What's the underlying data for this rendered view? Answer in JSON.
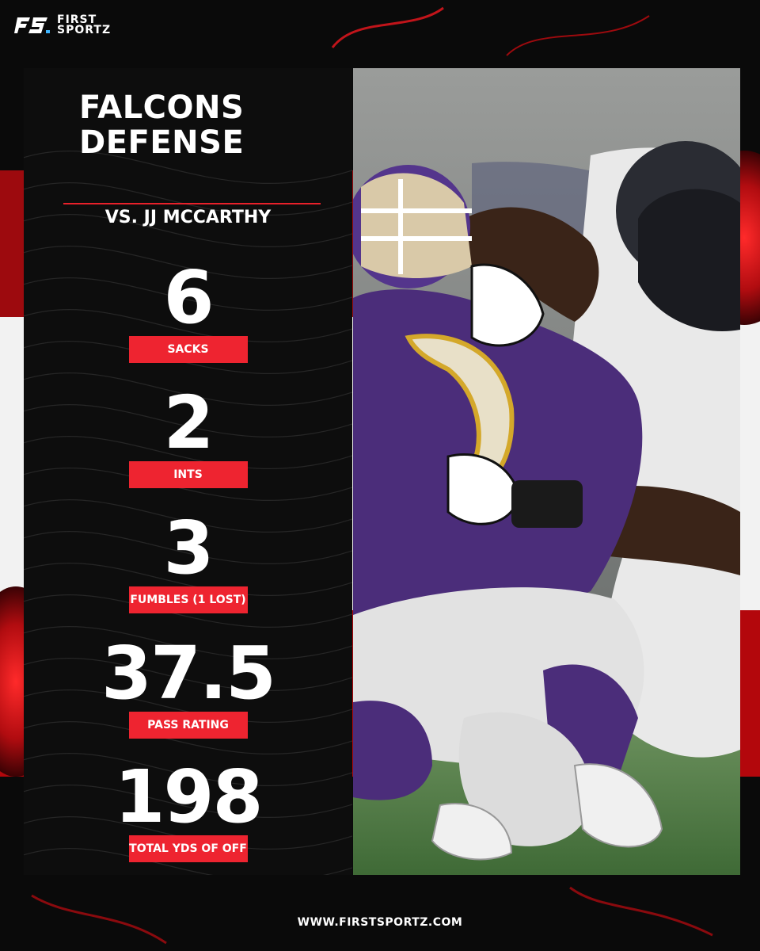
{
  "brand": {
    "line1": "FIRST",
    "line2": "SPORTZ",
    "mark": "FS"
  },
  "title_line1": "FALCONS",
  "title_line2": "DEFENSE",
  "subtitle": "VS. JJ MCCARTHY",
  "stats": [
    {
      "value": "6",
      "label": "SACKS"
    },
    {
      "value": "2",
      "label": "INTS"
    },
    {
      "value": "3",
      "label": "FUMBLES (1 LOST)"
    },
    {
      "value": "37.5",
      "label": "PASS RATING"
    },
    {
      "value": "198",
      "label": "TOTAL YDS OF OFF"
    }
  ],
  "footer": "WWW.FIRSTSPORTZ.COM",
  "colors": {
    "accent": "#ee2430",
    "purple": "#4b2d7a",
    "background": "#0a0a0a"
  }
}
